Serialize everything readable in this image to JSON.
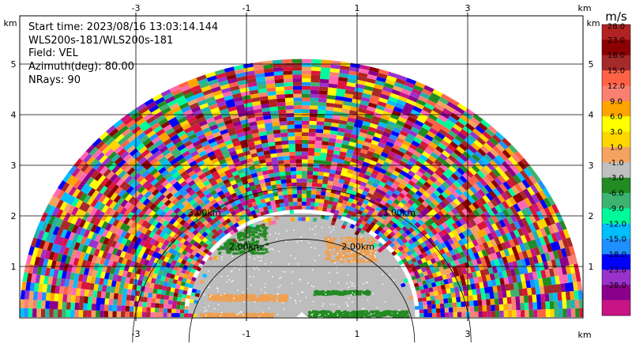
{
  "chart_data": {
    "type": "heatmap",
    "info": {
      "start_time": "Start time: 2023/08/16 13:03:14.144",
      "instrument": "WLS200s-181/WLS200s-181",
      "field": "Field: VEL",
      "azimuth": "Azimuth(deg): 80.00",
      "nrays": "NRays: 90"
    },
    "x_axis": {
      "unit_label": "km",
      "ticks": [
        -3,
        -1,
        1,
        3
      ],
      "tick_labels": [
        "-3",
        "-1",
        "1",
        "3"
      ],
      "range": [
        -3.0,
        3.0
      ]
    },
    "y_axis": {
      "unit_label": "km",
      "ticks": [
        1,
        2,
        3,
        4,
        5
      ],
      "tick_labels": [
        "1",
        "2",
        "3",
        "4",
        "5"
      ],
      "range": [
        0.0,
        5.95
      ]
    },
    "range_rings": [
      {
        "radius_km": 2.0,
        "label": "2.00km"
      },
      {
        "radius_km": 3.0,
        "label": "3.00km"
      }
    ],
    "max_range_km": 5.1,
    "grid": true,
    "colorbar": {
      "unit": "m/s",
      "levels": [
        "28.0",
        "23.0",
        "18.0",
        "15.0",
        "12.0",
        "9.0",
        "6.0",
        "3.0",
        "1.0",
        "-1.0",
        "-3.0",
        "-6.0",
        "-9.0",
        "-12.0",
        "-15.0",
        "-18.0",
        "-23.0",
        "-28.0"
      ],
      "colors": [
        "#b22222",
        "#8b0000",
        "#a52a2a",
        "#ff6347",
        "#fa8072",
        "#ffa500",
        "#ffff00",
        "#ffd700",
        "#f4a460",
        "#c0c0c0",
        "#228b22",
        "#3cb371",
        "#00fa9a",
        "#00bfff",
        "#1e90ff",
        "#0000ff",
        "#9932cc",
        "#8b008b",
        "#c71585"
      ]
    },
    "noise_palette": [
      "#b22222",
      "#8b0000",
      "#a52a2a",
      "#ff6347",
      "#fa8072",
      "#ffa500",
      "#ffff00",
      "#ffd700",
      "#f4a460",
      "#228b22",
      "#3cb371",
      "#00fa9a",
      "#00bfff",
      "#1e90ff",
      "#0000ff",
      "#9932cc",
      "#8b008b",
      "#c71585",
      "#dc143c",
      "#ff69b4",
      "#20b2aa"
    ],
    "near_field": {
      "background_color": "#bdbdbd",
      "signal_cutoff_km": 2.05,
      "features": [
        {
          "name": "green-left",
          "color": "#228b22"
        },
        {
          "name": "orange-right",
          "color": "#f0a050"
        },
        {
          "name": "orange-base",
          "color": "#f0a050"
        },
        {
          "name": "green-base",
          "color": "#228b22"
        }
      ]
    }
  }
}
